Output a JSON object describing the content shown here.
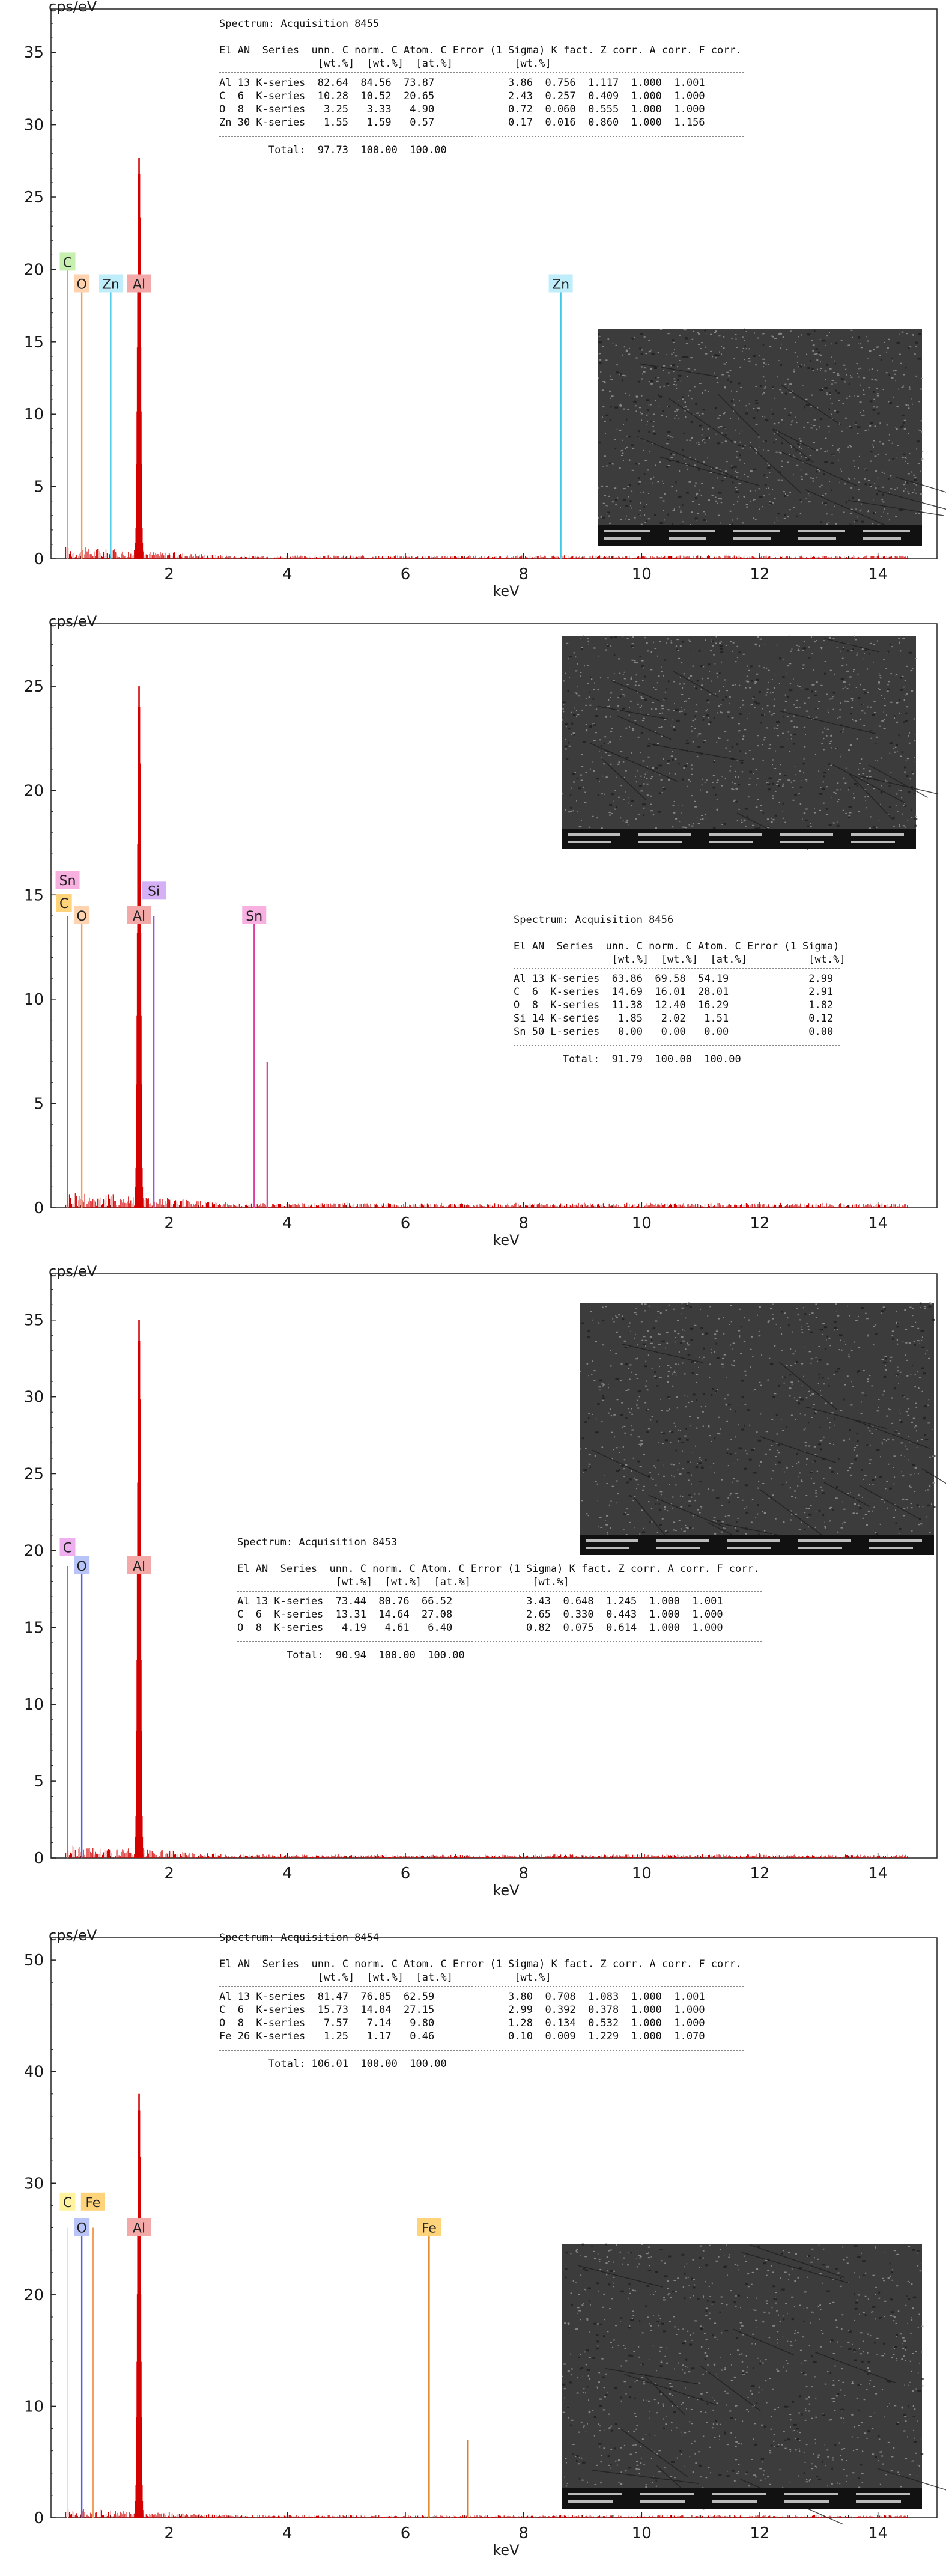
{
  "chart_data": [
    {
      "type": "line",
      "ylabel": "cps/eV",
      "xlabel": "keV",
      "xlim": [
        0,
        15
      ],
      "ylim": [
        0,
        38
      ],
      "xticks": [
        "2",
        "4",
        "6",
        "8",
        "10",
        "12",
        "14"
      ],
      "yticks": [
        "0",
        "5",
        "10",
        "15",
        "20",
        "25",
        "30",
        "35"
      ],
      "peaks": [
        {
          "x": 0.28,
          "y": 20.5,
          "color": "#7ed957"
        },
        {
          "x": 0.52,
          "y": 19.0,
          "color": "#f2a05a"
        },
        {
          "x": 1.01,
          "y": 19.0,
          "color": "#40c8e8"
        },
        {
          "x": 1.49,
          "y": 27.7,
          "color": "#d40000"
        },
        {
          "x": 8.63,
          "y": 19.0,
          "color": "#40c8e8"
        }
      ],
      "peak_labels": [
        {
          "text": "C",
          "x": 0.28,
          "y": 20.5,
          "bg": "#c7f0b0"
        },
        {
          "text": "O",
          "x": 0.52,
          "y": 19.0,
          "bg": "#ffd3b0"
        },
        {
          "text": "Zn",
          "x": 1.01,
          "y": 19.0,
          "bg": "#bfeefa"
        },
        {
          "text": "Al",
          "x": 1.49,
          "y": 19.0,
          "bg": "#f4a9a9"
        },
        {
          "text": "Zn",
          "x": 8.63,
          "y": 19.0,
          "bg": "#bfeefa"
        }
      ],
      "table": {
        "title": "Spectrum: Acquisition 8455",
        "header1": "El AN  Series  unn. C norm. C Atom. C Error (1 Sigma) K fact. Z corr. A corr. F corr.",
        "header2": "                [wt.%]  [wt.%]  [at.%]          [wt.%]",
        "rows": [
          "Al 13 K-series  82.64  84.56  73.87            3.86  0.756  1.117  1.000  1.001",
          "C  6  K-series  10.28  10.52  20.65            2.43  0.257  0.409  1.000  1.000",
          "O  8  K-series   3.25   3.33   4.90            0.72  0.060  0.555  1.000  1.000",
          "Zn 30 K-series   1.55   1.59   0.57            0.17  0.016  0.860  1.000  1.156"
        ],
        "total": "        Total:  97.73  100.00  100.00"
      }
    },
    {
      "type": "line",
      "ylabel": "cps/eV",
      "xlabel": "keV",
      "xlim": [
        0,
        15
      ],
      "ylim": [
        0,
        28
      ],
      "xticks": [
        "2",
        "4",
        "6",
        "8",
        "10",
        "12",
        "14"
      ],
      "yticks": [
        "0",
        "5",
        "10",
        "15",
        "20",
        "25"
      ],
      "peaks": [
        {
          "x": 0.28,
          "y": 14.0,
          "color": "#e040a0"
        },
        {
          "x": 0.52,
          "y": 14.0,
          "color": "#f2a05a"
        },
        {
          "x": 1.49,
          "y": 25.0,
          "color": "#d40000"
        },
        {
          "x": 1.74,
          "y": 14.0,
          "color": "#a050e0"
        },
        {
          "x": 3.44,
          "y": 14.0,
          "color": "#e040a0"
        },
        {
          "x": 3.66,
          "y": 7.0,
          "color": "#e040a0"
        }
      ],
      "peak_labels": [
        {
          "text": "Sn",
          "x": 0.28,
          "y": 15.7,
          "bg": "#f7b0e0"
        },
        {
          "text": "C",
          "x": 0.22,
          "y": 14.6,
          "bg": "#ffd37a"
        },
        {
          "text": "O",
          "x": 0.52,
          "y": 14.0,
          "bg": "#ffd3b0"
        },
        {
          "text": "Al",
          "x": 1.49,
          "y": 14.0,
          "bg": "#f4a9a9"
        },
        {
          "text": "Si",
          "x": 1.74,
          "y": 15.2,
          "bg": "#d6b0f7"
        },
        {
          "text": "Sn",
          "x": 3.44,
          "y": 14.0,
          "bg": "#f7b0e0"
        }
      ],
      "table": {
        "title": "Spectrum: Acquisition 8456",
        "header1": "El AN  Series  unn. C norm. C Atom. C Error (1 Sigma)",
        "header2": "                [wt.%]  [wt.%]  [at.%]          [wt.%]",
        "rows": [
          "Al 13 K-series  63.86  69.58  54.19             2.99",
          "C  6  K-series  14.69  16.01  28.01             2.91",
          "O  8  K-series  11.38  12.40  16.29             1.82",
          "Si 14 K-series   1.85   2.02   1.51             0.12",
          "Sn 50 L-series   0.00   0.00   0.00             0.00"
        ],
        "total": "        Total:  91.79  100.00  100.00"
      }
    },
    {
      "type": "line",
      "ylabel": "cps/eV",
      "xlabel": "keV",
      "xlim": [
        0,
        15
      ],
      "ylim": [
        0,
        38
      ],
      "xticks": [
        "2",
        "4",
        "6",
        "8",
        "10",
        "12",
        "14"
      ],
      "yticks": [
        "0",
        "5",
        "10",
        "15",
        "20",
        "25",
        "30",
        "35"
      ],
      "peaks": [
        {
          "x": 0.28,
          "y": 19.0,
          "color": "#e040e0"
        },
        {
          "x": 0.52,
          "y": 19.0,
          "color": "#5060e0"
        },
        {
          "x": 1.49,
          "y": 35.0,
          "color": "#d40000"
        }
      ],
      "peak_labels": [
        {
          "text": "C",
          "x": 0.28,
          "y": 20.2,
          "bg": "#f0b0f0"
        },
        {
          "text": "O",
          "x": 0.52,
          "y": 19.0,
          "bg": "#b8c4f7"
        },
        {
          "text": "Al",
          "x": 1.49,
          "y": 19.0,
          "bg": "#f4a9a9"
        }
      ],
      "table": {
        "title": "Spectrum: Acquisition 8453",
        "header1": "El AN  Series  unn. C norm. C Atom. C Error (1 Sigma) K fact. Z corr. A corr. F corr.",
        "header2": "                [wt.%]  [wt.%]  [at.%]          [wt.%]",
        "rows": [
          "Al 13 K-series  73.44  80.76  66.52            3.43  0.648  1.245  1.000  1.001",
          "C  6  K-series  13.31  14.64  27.08            2.65  0.330  0.443  1.000  1.000",
          "O  8  K-series   4.19   4.61   6.40            0.82  0.075  0.614  1.000  1.000"
        ],
        "total": "        Total:  90.94  100.00  100.00"
      }
    },
    {
      "type": "line",
      "ylabel": "cps/eV",
      "xlabel": "keV",
      "xlim": [
        0,
        15
      ],
      "ylim": [
        0,
        52
      ],
      "xticks": [
        "2",
        "4",
        "6",
        "8",
        "10",
        "12",
        "14"
      ],
      "yticks": [
        "0",
        "10",
        "20",
        "30",
        "40",
        "50"
      ],
      "peaks": [
        {
          "x": 0.28,
          "y": 26.0,
          "color": "#f0f060"
        },
        {
          "x": 0.52,
          "y": 26.0,
          "color": "#5060e0"
        },
        {
          "x": 0.71,
          "y": 26.0,
          "color": "#f2a05a"
        },
        {
          "x": 1.49,
          "y": 38.0,
          "color": "#d40000"
        },
        {
          "x": 6.4,
          "y": 26.0,
          "color": "#e07a10"
        },
        {
          "x": 7.06,
          "y": 7.0,
          "color": "#e07a10"
        }
      ],
      "peak_labels": [
        {
          "text": "C",
          "x": 0.28,
          "y": 28.3,
          "bg": "#fff3a0"
        },
        {
          "text": "Fe",
          "x": 0.71,
          "y": 28.3,
          "bg": "#ffd37a"
        },
        {
          "text": "O",
          "x": 0.52,
          "y": 26.0,
          "bg": "#b8c4f7"
        },
        {
          "text": "Al",
          "x": 1.49,
          "y": 26.0,
          "bg": "#f4a9a9"
        },
        {
          "text": "Fe",
          "x": 6.4,
          "y": 26.0,
          "bg": "#ffd37a"
        }
      ],
      "table": {
        "title": "Spectrum: Acquisition 8454",
        "header1": "El AN  Series  unn. C norm. C Atom. C Error (1 Sigma) K fact. Z corr. A corr. F corr.",
        "header2": "                [wt.%]  [wt.%]  [at.%]          [wt.%]",
        "rows": [
          "Al 13 K-series  81.47  76.85  62.59            3.80  0.708  1.083  1.000  1.001",
          "C  6  K-series  15.73  14.84  27.15            2.99  0.392  0.378  1.000  1.000",
          "O  8  K-series   7.57   7.14   9.80            1.28  0.134  0.532  1.000  1.000",
          "Fe 26 K-series   1.25   1.17   0.46            0.10  0.009  1.229  1.000  1.070"
        ],
        "total": "        Total: 106.01  100.00  100.00"
      }
    }
  ]
}
